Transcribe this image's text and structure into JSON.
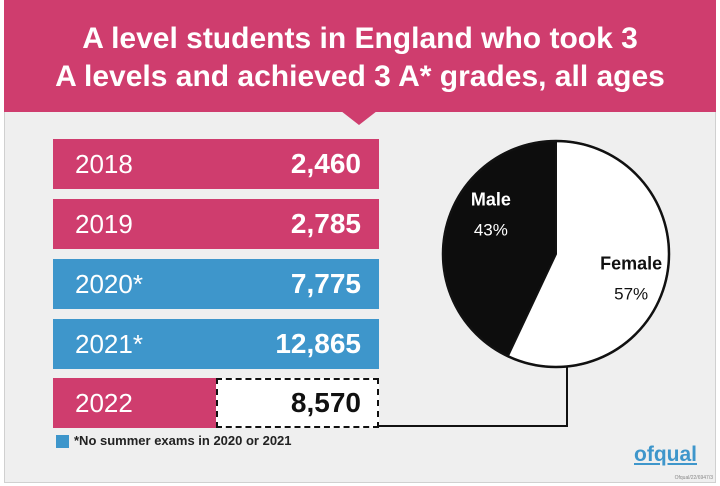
{
  "title_line1": "A level students in England who took 3",
  "title_line2": "A levels and achieved 3 A* grades, all ages",
  "colors": {
    "pink": "#cf3d6e",
    "blue": "#3e96cb",
    "black": "#0d0d0d"
  },
  "chart_data": [
    {
      "type": "table",
      "categories": [
        "2018",
        "2019",
        "2020*",
        "2021*",
        "2022"
      ],
      "values": [
        2460,
        2785,
        7775,
        12865,
        8570
      ],
      "labels": [
        "2,460",
        "2,785",
        "7,775",
        "12,865",
        "8,570"
      ],
      "highlight": [
        "pink",
        "pink",
        "blue",
        "blue",
        "pink"
      ]
    },
    {
      "type": "pie",
      "slices": [
        {
          "name": "Male",
          "value": 43,
          "label": "43%"
        },
        {
          "name": "Female",
          "value": 57,
          "label": "57%"
        }
      ]
    }
  ],
  "legend_note": "*No summer exams in 2020 or 2021",
  "logo_text": "ofqual",
  "reference": "Ofqual/22/6947/3"
}
